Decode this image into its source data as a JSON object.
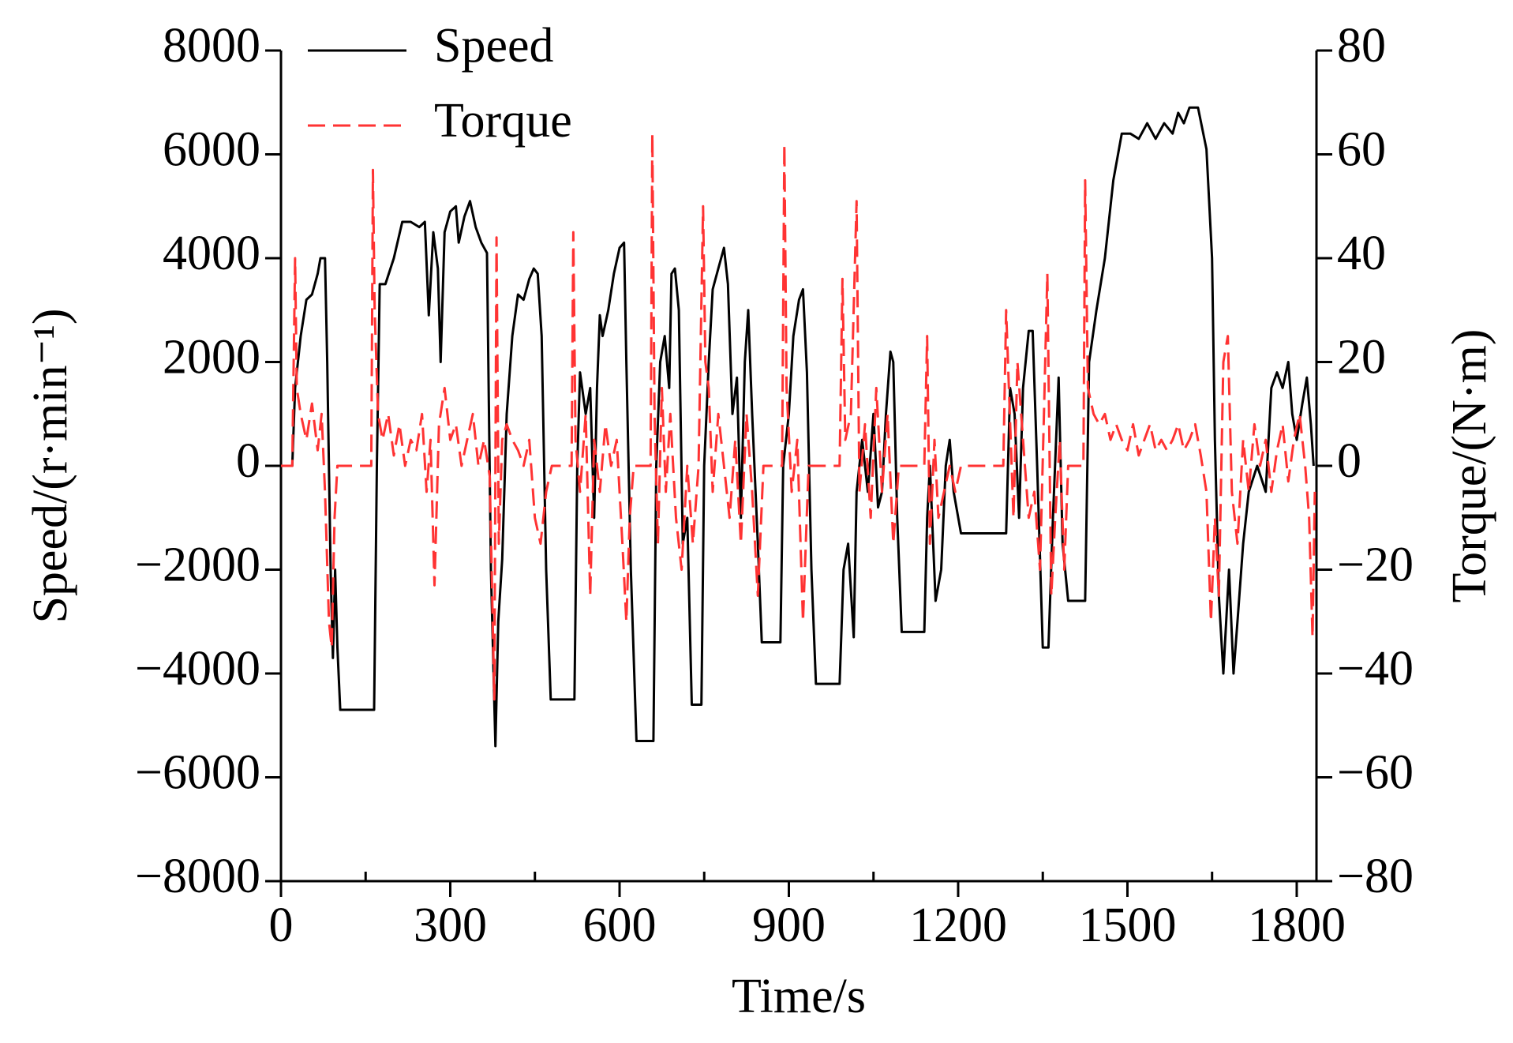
{
  "chart_data": {
    "type": "line",
    "xlabel": "Time/s",
    "ylabel": "Speed/(r·min⁻¹)",
    "y2label": "Torque/(N·m)",
    "xlim": [
      0,
      1835
    ],
    "xticks": [
      0,
      300,
      600,
      900,
      1200,
      1500,
      1800
    ],
    "xticks_minor": [
      150,
      450,
      750,
      1050,
      1350,
      1650
    ],
    "ylim": [
      -8000,
      8000
    ],
    "yticks": [
      {
        "value": -8000,
        "label": "−8000"
      },
      {
        "value": -6000,
        "label": "−6000"
      },
      {
        "value": -4000,
        "label": "−4000"
      },
      {
        "value": -2000,
        "label": "−2000"
      },
      0,
      2000,
      4000,
      6000,
      8000
    ],
    "y2lim": [
      -80,
      80
    ],
    "y2ticks": [
      {
        "value": -80,
        "label": "−80"
      },
      {
        "value": -60,
        "label": "−60"
      },
      {
        "value": -40,
        "label": "−40"
      },
      {
        "value": -20,
        "label": "−20"
      },
      0,
      20,
      40,
      60,
      80
    ],
    "legend": "upper left",
    "series": [
      {
        "name": "Speed",
        "color": "#000000",
        "line_style": "solid",
        "axis": "y",
        "x": [
          0,
          20,
          25,
          35,
          45,
          55,
          65,
          70,
          78,
          82,
          88,
          92,
          96,
          100,
          105,
          165,
          170,
          175,
          185,
          200,
          215,
          230,
          245,
          255,
          262,
          270,
          278,
          283,
          290,
          300,
          310,
          315,
          325,
          335,
          345,
          355,
          365,
          372,
          380,
          385,
          392,
          400,
          410,
          420,
          430,
          440,
          448,
          455,
          462,
          470,
          478,
          520,
          525,
          530,
          540,
          548,
          555,
          560,
          565,
          570,
          580,
          590,
          600,
          608,
          612,
          620,
          630,
          660,
          665,
          672,
          680,
          688,
          692,
          698,
          705,
          712,
          720,
          728,
          745,
          750,
          758,
          765,
          775,
          785,
          792,
          800,
          808,
          815,
          822,
          828,
          835,
          845,
          852,
          885,
          890,
          900,
          908,
          918,
          925,
          932,
          940,
          948,
          990,
          997,
          1005,
          1015,
          1020,
          1030,
          1040,
          1050,
          1058,
          1065,
          1072,
          1080,
          1085,
          1092,
          1100,
          1140,
          1145,
          1150,
          1160,
          1170,
          1178,
          1185,
          1192,
          1205,
          1285,
          1292,
          1300,
          1308,
          1315,
          1325,
          1332,
          1340,
          1350,
          1360,
          1368,
          1378,
          1385,
          1395,
          1425,
          1432,
          1445,
          1460,
          1475,
          1490,
          1505,
          1520,
          1535,
          1550,
          1565,
          1580,
          1590,
          1600,
          1610,
          1625,
          1640,
          1650,
          1655,
          1662,
          1670,
          1680,
          1688,
          1695,
          1705,
          1715,
          1730,
          1745,
          1755,
          1765,
          1775,
          1785,
          1792,
          1800,
          1810,
          1818,
          1825,
          1830
        ],
        "values": [
          0,
          0,
          1500,
          2500,
          3200,
          3300,
          3700,
          4000,
          4000,
          2000,
          -2000,
          -3700,
          -2000,
          -3500,
          -4700,
          -4700,
          0,
          3500,
          3500,
          4000,
          4700,
          4700,
          4600,
          4700,
          2900,
          4500,
          3800,
          2000,
          4500,
          4900,
          5000,
          4300,
          4800,
          5100,
          4600,
          4300,
          4100,
          -2000,
          -5400,
          -3000,
          -1800,
          1000,
          2500,
          3300,
          3200,
          3600,
          3800,
          3700,
          2500,
          -2000,
          -4500,
          -4500,
          0,
          1800,
          1000,
          1500,
          -1000,
          1500,
          2900,
          2500,
          3000,
          3700,
          4200,
          4300,
          2000,
          -2000,
          -5300,
          -5300,
          0,
          2000,
          2500,
          1500,
          3700,
          3800,
          3000,
          -1500,
          -1000,
          -4600,
          -4600,
          0,
          2000,
          3400,
          3800,
          4200,
          3500,
          1000,
          1700,
          -1000,
          2000,
          3000,
          1000,
          -1500,
          -3400,
          -3400,
          0,
          1000,
          2500,
          3200,
          3400,
          1800,
          -2000,
          -4200,
          -4200,
          -2000,
          -1500,
          -3300,
          -500,
          500,
          -500,
          1000,
          -800,
          -500,
          1000,
          2200,
          2000,
          -1000,
          -3200,
          -3200,
          -1000,
          0,
          -2600,
          -2000,
          0,
          500,
          -500,
          -1300,
          -1300,
          1500,
          1000,
          -1000,
          1500,
          2600,
          2600,
          0,
          -3500,
          -3500,
          -1000,
          1700,
          -1500,
          -2600,
          -2600,
          2000,
          3000,
          4000,
          5500,
          6400,
          6400,
          6300,
          6600,
          6300,
          6600,
          6400,
          6800,
          6600,
          6900,
          6900,
          6100,
          4000,
          500,
          -2500,
          -4000,
          -2000,
          -4000,
          -3000,
          -1500,
          -500,
          0,
          -500,
          1500,
          1800,
          1500,
          2000,
          1000,
          500,
          1200,
          1700,
          800,
          0
        ]
      },
      {
        "name": "Torque",
        "color": "#ff3333",
        "line_style": "dashed",
        "axis": "y2",
        "x": [
          0,
          20,
          25,
          28,
          35,
          45,
          55,
          65,
          72,
          78,
          85,
          90,
          95,
          100,
          160,
          163,
          166,
          172,
          180,
          190,
          200,
          210,
          220,
          230,
          240,
          250,
          258,
          265,
          272,
          280,
          290,
          300,
          310,
          320,
          330,
          340,
          350,
          360,
          370,
          378,
          382,
          386,
          392,
          400,
          410,
          420,
          430,
          440,
          450,
          460,
          470,
          480,
          515,
          518,
          522,
          530,
          540,
          548,
          555,
          565,
          575,
          585,
          595,
          605,
          612,
          618,
          625,
          655,
          658,
          662,
          668,
          675,
          682,
          690,
          700,
          710,
          720,
          730,
          740,
          748,
          752,
          758,
          765,
          775,
          785,
          795,
          805,
          815,
          825,
          835,
          845,
          855,
          888,
          892,
          896,
          905,
          915,
          925,
          935,
          990,
          995,
          1000,
          1010,
          1020,
          1025,
          1035,
          1045,
          1055,
          1065,
          1075,
          1085,
          1095,
          1140,
          1145,
          1150,
          1158,
          1165,
          1175,
          1185,
          1195,
          1205,
          1280,
          1285,
          1290,
          1298,
          1305,
          1315,
          1325,
          1335,
          1345,
          1352,
          1358,
          1365,
          1372,
          1380,
          1388,
          1395,
          1422,
          1425,
          1430,
          1440,
          1450,
          1460,
          1470,
          1480,
          1490,
          1500,
          1510,
          1520,
          1530,
          1540,
          1550,
          1560,
          1570,
          1580,
          1590,
          1600,
          1610,
          1620,
          1630,
          1640,
          1648,
          1655,
          1662,
          1670,
          1678,
          1685,
          1695,
          1705,
          1715,
          1725,
          1735,
          1745,
          1755,
          1765,
          1775,
          1785,
          1795,
          1805,
          1815,
          1822,
          1828,
          1832
        ],
        "values": [
          0,
          0,
          40,
          15,
          10,
          5,
          12,
          3,
          10,
          -5,
          -30,
          -35,
          -10,
          0,
          0,
          57,
          30,
          10,
          5,
          10,
          2,
          8,
          0,
          5,
          3,
          10,
          -5,
          5,
          -23,
          8,
          15,
          5,
          8,
          0,
          5,
          10,
          0,
          5,
          -2,
          -45,
          44,
          -15,
          5,
          8,
          5,
          3,
          0,
          5,
          -10,
          -15,
          -5,
          0,
          0,
          45,
          5,
          -5,
          10,
          -25,
          5,
          -5,
          8,
          0,
          5,
          -15,
          -30,
          -10,
          0,
          0,
          64,
          10,
          -15,
          15,
          -5,
          10,
          -10,
          -20,
          0,
          -15,
          0,
          50,
          20,
          15,
          -5,
          10,
          0,
          -10,
          5,
          -15,
          10,
          -5,
          -25,
          0,
          0,
          62,
          15,
          -5,
          5,
          -30,
          0,
          0,
          36,
          5,
          10,
          51,
          -5,
          8,
          -10,
          15,
          -5,
          10,
          -15,
          0,
          0,
          25,
          -15,
          5,
          -10,
          -5,
          0,
          -5,
          0,
          0,
          30,
          15,
          -10,
          20,
          5,
          -10,
          -5,
          -20,
          10,
          37,
          -25,
          -10,
          5,
          -20,
          0,
          0,
          55,
          15,
          10,
          8,
          10,
          5,
          8,
          5,
          3,
          8,
          2,
          5,
          8,
          3,
          5,
          3,
          5,
          8,
          3,
          5,
          8,
          2,
          -5,
          -30,
          -10,
          -25,
          20,
          25,
          -5,
          -15,
          5,
          -5,
          8,
          0,
          5,
          -5,
          3,
          8,
          -3,
          5,
          10,
          0,
          -10,
          -33,
          -5
        ]
      }
    ]
  }
}
